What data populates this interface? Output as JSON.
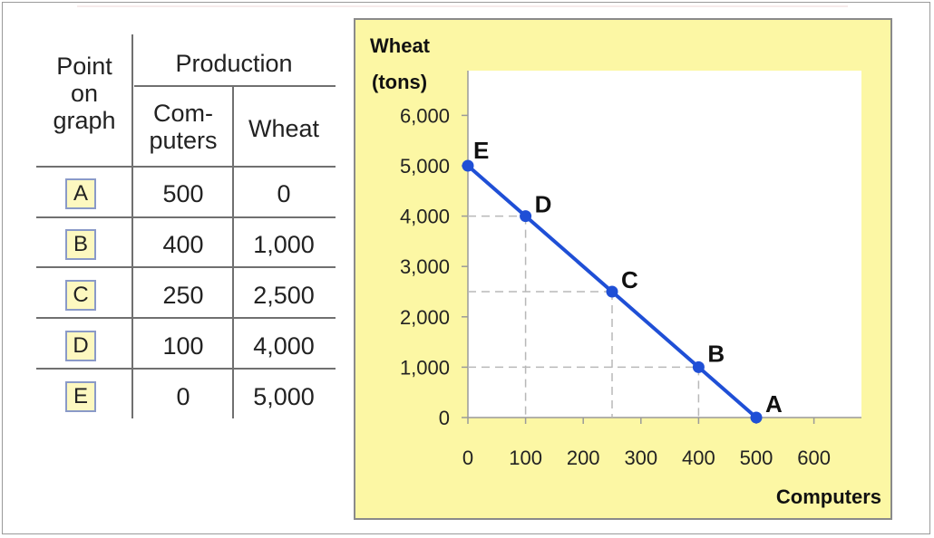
{
  "table": {
    "col_point": [
      "Point",
      "on",
      "graph"
    ],
    "col_production": "Production",
    "col_computers": [
      "Com-",
      "puters"
    ],
    "col_wheat": "Wheat",
    "rows": [
      {
        "point": "A",
        "computers": "500",
        "wheat": "0"
      },
      {
        "point": "B",
        "computers": "400",
        "wheat": "1,000"
      },
      {
        "point": "C",
        "computers": "250",
        "wheat": "2,500"
      },
      {
        "point": "D",
        "computers": "100",
        "wheat": "4,000"
      },
      {
        "point": "E",
        "computers": "0",
        "wheat": "5,000"
      }
    ]
  },
  "chart_data": {
    "type": "line",
    "title": "",
    "xlabel": "Computers",
    "ylabel": [
      "Wheat",
      "(tons)"
    ],
    "xlim": [
      0,
      650
    ],
    "ylim": [
      0,
      6000
    ],
    "x_ticks": [
      0,
      100,
      200,
      300,
      400,
      500,
      600
    ],
    "x_tick_labels": [
      "0",
      "100",
      "200",
      "300",
      "400",
      "500",
      "600"
    ],
    "y_ticks": [
      0,
      1000,
      2000,
      3000,
      4000,
      5000,
      6000
    ],
    "y_tick_labels": [
      "0",
      "1,000",
      "2,000",
      "3,000",
      "4,000",
      "5,000",
      "6,000"
    ],
    "grid": false,
    "series": [
      {
        "color": "#1f4fd6",
        "points": [
          {
            "label": "E",
            "x": 0,
            "y": 5000
          },
          {
            "label": "D",
            "x": 100,
            "y": 4000
          },
          {
            "label": "C",
            "x": 250,
            "y": 2500
          },
          {
            "label": "B",
            "x": 400,
            "y": 1000
          },
          {
            "label": "A",
            "x": 500,
            "y": 0
          }
        ]
      }
    ],
    "dashed_guides": true,
    "colors": {
      "panel": "#fcf7a4",
      "plot_bg": "#ffffff",
      "line": "#1f4fd6",
      "guide": "#b8b8b8"
    }
  }
}
